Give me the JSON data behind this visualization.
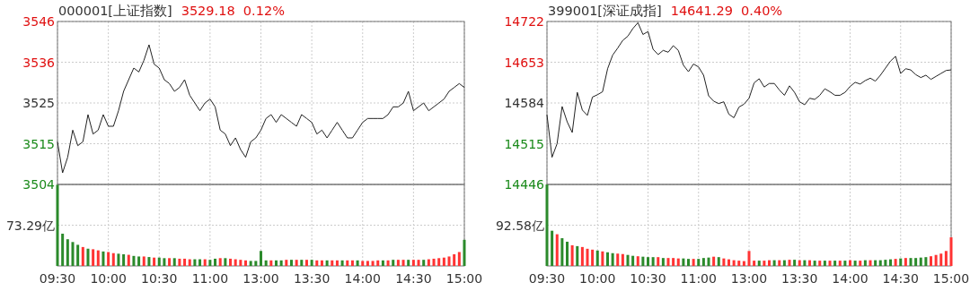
{
  "chart_data": [
    {
      "type": "line",
      "title": "000001[上证指数]",
      "subtitle": "3529.18  0.12%",
      "color": "#222222",
      "grid": true,
      "categories": [
        null,
        null,
        null,
        null,
        null,
        null,
        null,
        null,
        null,
        null,
        null,
        null,
        null,
        null,
        null,
        null,
        null,
        null,
        null,
        null,
        null,
        null,
        null,
        null,
        null,
        null,
        null,
        null,
        null,
        null,
        null,
        null,
        null,
        null,
        null,
        null,
        null,
        null,
        null,
        null,
        null,
        null,
        null,
        null,
        null,
        null,
        null,
        null,
        null,
        null,
        null,
        null,
        null,
        null,
        null,
        null,
        null,
        null,
        null,
        null,
        null,
        null,
        null,
        null,
        null,
        null,
        null,
        null,
        null,
        null,
        null,
        null,
        null,
        null,
        null,
        null,
        null,
        null,
        null,
        null,
        null
      ],
      "ylim": [
        3504,
        3546
      ],
      "yticks": [
        3504,
        {
          "value": 3514.5,
          "label": "3515"
        },
        3525,
        {
          "value": 3535.5,
          "label": "3536"
        },
        3546
      ],
      "values": [
        3515,
        3507,
        3511,
        3518,
        3514,
        3515,
        3522,
        3517,
        3518,
        3522,
        3519,
        3519,
        3523,
        3528,
        3531,
        3534,
        3533,
        3536,
        3540,
        3535,
        3534,
        3531,
        3530,
        3528,
        3529,
        3531,
        3527,
        3525,
        3523,
        3525,
        3526,
        3524,
        3518,
        3517,
        3514,
        3516,
        3513,
        3511,
        3515,
        3516,
        3518,
        3521,
        3522,
        3520,
        3522,
        3521,
        3520,
        3519,
        3522,
        3521,
        3520,
        3517,
        3518,
        3516,
        3518,
        3520,
        3518,
        3516,
        3516,
        3518,
        3520,
        3521,
        3521,
        3521,
        3521,
        3522,
        3524,
        3524,
        3525,
        3528,
        3523,
        3524,
        3525,
        3523,
        3524,
        3525,
        3526,
        3528,
        3529,
        3530,
        3529
      ]
    },
    {
      "type": "line",
      "title": "399001[深证成指]",
      "subtitle": "14641.29  0.40%",
      "color": "#222222",
      "grid": true,
      "categories": [
        null,
        null,
        null,
        null,
        null,
        null,
        null,
        null,
        null,
        null,
        null,
        null,
        null,
        null,
        null,
        null,
        null,
        null,
        null,
        null,
        null,
        null,
        null,
        null,
        null,
        null,
        null,
        null,
        null,
        null,
        null,
        null,
        null,
        null,
        null,
        null,
        null,
        null,
        null,
        null,
        null,
        null,
        null,
        null,
        null,
        null,
        null,
        null,
        null,
        null,
        null,
        null,
        null,
        null,
        null,
        null,
        null,
        null,
        null,
        null,
        null,
        null,
        null,
        null,
        null,
        null,
        null,
        null,
        null,
        null,
        null,
        null,
        null,
        null,
        null,
        null,
        null,
        null,
        null,
        null,
        null
      ],
      "ylim": [
        14446,
        14722
      ],
      "yticks": [
        14446,
        14515,
        14584,
        14653,
        14722
      ],
      "values": [
        14564,
        14492,
        14515,
        14578,
        14552,
        14534,
        14602,
        14572,
        14563,
        14594,
        14598,
        14603,
        14642,
        14665,
        14677,
        14690,
        14697,
        14710,
        14720,
        14700,
        14705,
        14675,
        14666,
        14673,
        14670,
        14681,
        14673,
        14648,
        14637,
        14650,
        14645,
        14631,
        14596,
        14587,
        14583,
        14586,
        14565,
        14559,
        14577,
        14582,
        14592,
        14618,
        14625,
        14611,
        14617,
        14617,
        14606,
        14597,
        14613,
        14602,
        14586,
        14581,
        14592,
        14590,
        14597,
        14608,
        14603,
        14597,
        14597,
        14602,
        14612,
        14619,
        14616,
        14622,
        14626,
        14621,
        14631,
        14643,
        14655,
        14663,
        14634,
        14642,
        14640,
        14632,
        14627,
        14631,
        14624,
        14629,
        14634,
        14639,
        14640
      ]
    },
    {
      "type": "bar",
      "grid": true,
      "categories": [
        "09:30",
        null,
        null,
        null,
        null,
        null,
        null,
        null,
        null,
        null,
        "10:00",
        null,
        null,
        null,
        null,
        null,
        null,
        null,
        null,
        null,
        "10:30",
        null,
        null,
        null,
        null,
        null,
        null,
        null,
        null,
        null,
        "11:00",
        null,
        null,
        null,
        null,
        null,
        null,
        null,
        null,
        null,
        "13:00",
        null,
        null,
        null,
        null,
        null,
        null,
        null,
        null,
        null,
        "13:30",
        null,
        null,
        null,
        null,
        null,
        null,
        null,
        null,
        null,
        "14:00",
        null,
        null,
        null,
        null,
        null,
        null,
        null,
        null,
        null,
        "14:30",
        null,
        null,
        null,
        null,
        null,
        null,
        null,
        null,
        null,
        "15:00"
      ],
      "ylim": [
        0,
        146.58
      ],
      "yticks": [
        {
          "value": 73.29,
          "label": "73.29亿"
        }
      ],
      "values": [
        146,
        58,
        48,
        43,
        38,
        34,
        31,
        30,
        28,
        26,
        25,
        23,
        22,
        21,
        20,
        18,
        17,
        17,
        16,
        15,
        15,
        14,
        14,
        14,
        13,
        13,
        12,
        12,
        12,
        12,
        11,
        13,
        14,
        14,
        13,
        12,
        11,
        10,
        9,
        9,
        27,
        10,
        10,
        10,
        10,
        11,
        11,
        11,
        11,
        11,
        11,
        10,
        10,
        10,
        10,
        10,
        10,
        10,
        10,
        10,
        9,
        9,
        9,
        10,
        10,
        10,
        11,
        11,
        11,
        11,
        11,
        11,
        11,
        12,
        13,
        14,
        15,
        17,
        21,
        25,
        47
      ],
      "colors": [
        "#2b8a2b",
        "#2b8a2b",
        "#2b8a2b",
        "#2b8a2b",
        "#2b8a2b",
        "#ff3333",
        "#2b8a2b",
        "#ff3333",
        "#ff3333",
        "#2b8a2b",
        "#ff3333",
        "#ff3333",
        "#2b8a2b",
        "#2b8a2b",
        "#ff3333",
        "#2b8a2b",
        "#2b8a2b",
        "#ff3333",
        "#2b8a2b",
        "#ff3333",
        "#2b8a2b",
        "#2b8a2b",
        "#ff3333",
        "#2b8a2b",
        "#ff3333",
        "#ff3333",
        "#ff3333",
        "#2b8a2b",
        "#2b8a2b",
        "#ff3333",
        "#2b8a2b",
        "#2b8a2b",
        "#ff3333",
        "#2b8a2b",
        "#ff3333",
        "#ff3333",
        "#ff3333",
        "#ff3333",
        "#2b8a2b",
        "#2b8a2b",
        "#2b8a2b",
        "#2b8a2b",
        "#ff3333",
        "#2b8a2b",
        "#2b8a2b",
        "#ff3333",
        "#2b8a2b",
        "#ff3333",
        "#2b8a2b",
        "#ff3333",
        "#2b8a2b",
        "#ff3333",
        "#ff3333",
        "#2b8a2b",
        "#ff3333",
        "#ff3333",
        "#2b8a2b",
        "#ff3333",
        "#ff3333",
        "#2b8a2b",
        "#ff3333",
        "#ff3333",
        "#ff3333",
        "#ff3333",
        "#2b8a2b",
        "#ff3333",
        "#2b8a2b",
        "#ff3333",
        "#ff3333",
        "#2b8a2b",
        "#ff3333",
        "#ff3333",
        "#2b8a2b",
        "#ff3333",
        "#ff3333",
        "#ff3333",
        "#ff3333",
        "#ff3333",
        "#ff3333",
        "#ff3333",
        "#2b8a2b"
      ]
    },
    {
      "type": "bar",
      "grid": true,
      "categories": [
        "09:30",
        null,
        null,
        null,
        null,
        null,
        null,
        null,
        null,
        null,
        "10:00",
        null,
        null,
        null,
        null,
        null,
        null,
        null,
        null,
        null,
        "10:30",
        null,
        null,
        null,
        null,
        null,
        null,
        null,
        null,
        null,
        "11:00",
        null,
        null,
        null,
        null,
        null,
        null,
        null,
        null,
        null,
        "13:00",
        null,
        null,
        null,
        null,
        null,
        null,
        null,
        null,
        null,
        "13:30",
        null,
        null,
        null,
        null,
        null,
        null,
        null,
        null,
        null,
        "14:00",
        null,
        null,
        null,
        null,
        null,
        null,
        null,
        null,
        null,
        "14:30",
        null,
        null,
        null,
        null,
        null,
        null,
        null,
        null,
        null,
        "15:00"
      ],
      "ylim": [
        0,
        185.16
      ],
      "yticks": [
        {
          "value": 92.58,
          "label": "92.58亿"
        }
      ],
      "values": [
        185,
        80,
        72,
        63,
        55,
        47,
        45,
        43,
        39,
        37,
        35,
        33,
        31,
        29,
        28,
        27,
        25,
        23,
        22,
        21,
        20,
        20,
        20,
        18,
        18,
        18,
        17,
        17,
        16,
        16,
        16,
        18,
        19,
        21,
        20,
        17,
        15,
        13,
        12,
        11,
        34,
        12,
        12,
        12,
        13,
        13,
        13,
        13,
        14,
        14,
        13,
        13,
        13,
        12,
        12,
        12,
        12,
        12,
        12,
        12,
        13,
        12,
        12,
        13,
        13,
        13,
        13,
        14,
        15,
        16,
        17,
        18,
        18,
        18,
        19,
        20,
        22,
        25,
        28,
        34,
        65
      ],
      "colors": [
        "#2b8a2b",
        "#2b8a2b",
        "#ff3333",
        "#2b8a2b",
        "#2b8a2b",
        "#ff3333",
        "#2b8a2b",
        "#ff3333",
        "#ff3333",
        "#ff3333",
        "#2b8a2b",
        "#ff3333",
        "#2b8a2b",
        "#2b8a2b",
        "#ff3333",
        "#ff3333",
        "#2b8a2b",
        "#2b8a2b",
        "#ff3333",
        "#2b8a2b",
        "#2b8a2b",
        "#2b8a2b",
        "#ff3333",
        "#2b8a2b",
        "#ff3333",
        "#ff3333",
        "#ff3333",
        "#2b8a2b",
        "#2b8a2b",
        "#ff3333",
        "#2b8a2b",
        "#2b8a2b",
        "#2b8a2b",
        "#ff3333",
        "#2b8a2b",
        "#ff3333",
        "#ff3333",
        "#ff3333",
        "#ff3333",
        "#ff3333",
        "#ff3333",
        "#ff3333",
        "#2b8a2b",
        "#ff3333",
        "#ff3333",
        "#2b8a2b",
        "#ff3333",
        "#2b8a2b",
        "#ff3333",
        "#2b8a2b",
        "#ff3333",
        "#2b8a2b",
        "#ff3333",
        "#2b8a2b",
        "#ff3333",
        "#2b8a2b",
        "#ff3333",
        "#2b8a2b",
        "#ff3333",
        "#2b8a2b",
        "#ff3333",
        "#2b8a2b",
        "#ff3333",
        "#2b8a2b",
        "#ff3333",
        "#2b8a2b",
        "#2b8a2b",
        "#2b8a2b",
        "#2b8a2b",
        "#ff3333",
        "#2b8a2b",
        "#ff3333",
        "#2b8a2b",
        "#2b8a2b",
        "#2b8a2b",
        "#2b8a2b",
        "#ff3333",
        "#ff3333",
        "#ff3333",
        "#ff3333",
        "#ff3333"
      ]
    }
  ]
}
